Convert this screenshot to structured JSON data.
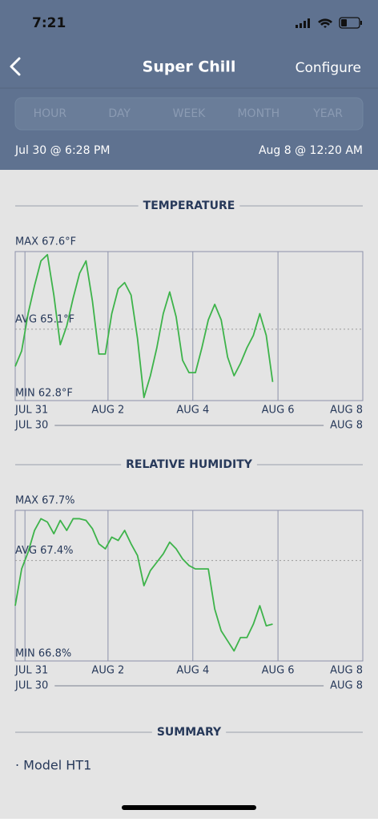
{
  "status_bar": {
    "time": "7:21"
  },
  "nav": {
    "title": "Super Chill",
    "action": "Configure"
  },
  "tabs": [
    "HOUR",
    "DAY",
    "WEEK",
    "MONTH",
    "YEAR"
  ],
  "range": {
    "start": "Jul 30 @ 6:28 PM",
    "end": "Aug 8 @ 12:20 AM"
  },
  "charts": [
    {
      "type": "line",
      "title": "TEMPERATURE",
      "color": "#3db34a",
      "ylim": [
        62.8,
        67.6
      ],
      "yticks": [
        {
          "value": 67.6,
          "label": "MAX 67.6°F"
        },
        {
          "value": 65.1,
          "label": "AVG 65.1°F"
        },
        {
          "value": 62.8,
          "label": "MIN 62.8°F"
        }
      ],
      "xtick_labels": [
        "JUL 31",
        "AUG 2",
        "AUG 4",
        "AUG 6",
        "AUG 8"
      ],
      "range_start": "JUL 30",
      "range_end": "AUG 8",
      "values": [
        63.9,
        64.4,
        65.6,
        66.5,
        67.3,
        67.5,
        66.2,
        64.6,
        65.2,
        66.1,
        66.9,
        67.3,
        66.0,
        64.3,
        64.3,
        65.6,
        66.4,
        66.6,
        66.2,
        64.8,
        62.9,
        63.6,
        64.5,
        65.6,
        66.3,
        65.5,
        64.1,
        63.7,
        63.7,
        64.5,
        65.4,
        65.9,
        65.4,
        64.2,
        63.6,
        64.0,
        64.5,
        64.9,
        65.6,
        64.9,
        63.4,
        null,
        null,
        null,
        null,
        null,
        null,
        null,
        null,
        null,
        null,
        null,
        null,
        null,
        null
      ]
    },
    {
      "type": "line",
      "title": "RELATIVE HUMIDITY",
      "color": "#3db34a",
      "ylim": [
        66.8,
        67.7
      ],
      "yticks": [
        {
          "value": 67.7,
          "label": "MAX 67.7%"
        },
        {
          "value": 67.4,
          "label": "AVG 67.4%"
        },
        {
          "value": 66.8,
          "label": "MIN 66.8%"
        }
      ],
      "xtick_labels": [
        "JUL 31",
        "AUG 2",
        "AUG 4",
        "AUG 6",
        "AUG 8"
      ],
      "range_start": "JUL 30",
      "range_end": "AUG 8",
      "values": [
        67.13,
        67.35,
        67.45,
        67.58,
        67.65,
        67.63,
        67.56,
        67.64,
        67.58,
        67.65,
        67.65,
        67.64,
        67.59,
        67.5,
        67.47,
        67.54,
        67.52,
        67.58,
        67.5,
        67.43,
        67.25,
        67.34,
        67.39,
        67.44,
        67.51,
        67.47,
        67.41,
        67.37,
        67.35,
        67.35,
        67.35,
        67.11,
        66.98,
        66.92,
        66.86,
        66.94,
        66.94,
        67.02,
        67.13,
        67.01,
        67.02,
        null,
        null,
        null,
        null,
        null,
        null,
        null,
        null,
        null,
        null,
        null,
        null,
        null,
        null
      ]
    }
  ],
  "summary": {
    "title": "SUMMARY",
    "items": [
      "· Model HT1"
    ]
  }
}
